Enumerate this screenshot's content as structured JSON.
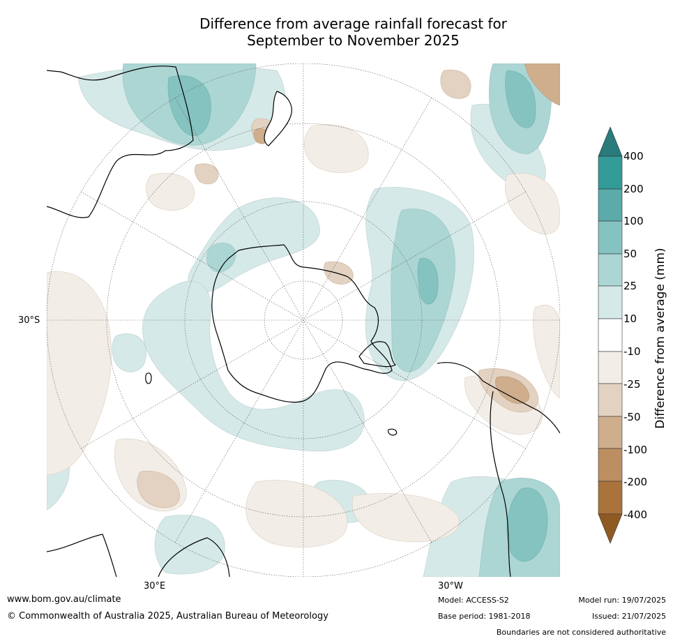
{
  "title_line1": "Difference from average rainfall forecast for",
  "title_line2": "September to November 2025",
  "map_labels": {
    "lat_30s": "30°S",
    "lon_30e": "30°E",
    "lon_30w": "30°W"
  },
  "colorbar": {
    "title": "Difference from average (mm)",
    "ticks": [
      "400",
      "200",
      "100",
      "50",
      "25",
      "10",
      "-10",
      "-25",
      "-50",
      "-100",
      "-200",
      "-400"
    ],
    "colors": {
      "over": "#2a7b7b",
      "200_400": "#339c99",
      "100_200": "#5aabaa",
      "50_100": "#85c3c1",
      "25_50": "#acd6d4",
      "10_25": "#d5e9e8",
      "neutral": "#ffffff",
      "m10_m25": "#f2ede7",
      "m25_m50": "#e3d2c1",
      "m50_m100": "#cfae8e",
      "m100_m200": "#bd8e61",
      "m200_m400": "#aa733b",
      "under": "#8f5a22"
    }
  },
  "footer": {
    "url": "www.bom.gov.au/climate",
    "copyright": "© Commonwealth of Australia 2025, Australian Bureau of Meteorology",
    "model": "Model: ACCESS-S2",
    "base_period": "Base period: 1981-2018",
    "model_run": "Model run: 19/07/2025",
    "issued": "Issued: 21/07/2025",
    "disclaimer": "Boundaries are not considered authoritative"
  }
}
